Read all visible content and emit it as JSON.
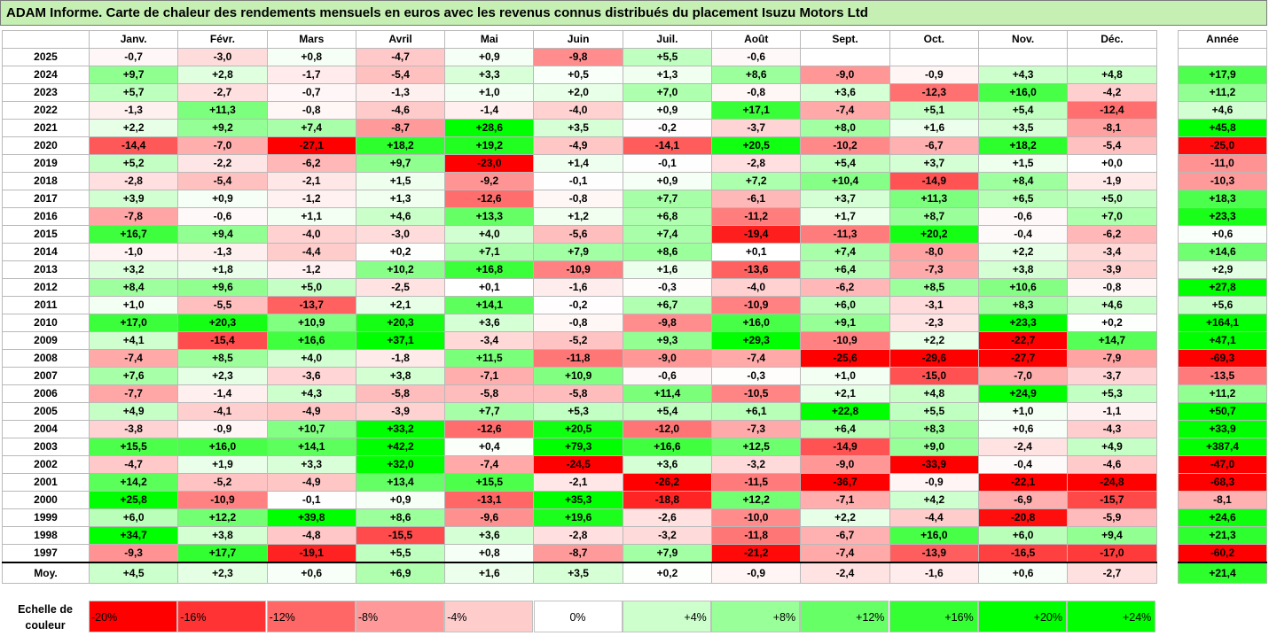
{
  "title": "ADAM Informe. Carte de chaleur des rendements mensuels en euros avec les revenus connus distribués du placement Isuzu Motors Ltd",
  "chart_data": {
    "type": "heatmap",
    "title": "ADAM Informe. Carte de chaleur des rendements mensuels en euros avec les revenus connus distribués du placement Isuzu Motors Ltd",
    "months": [
      "Janv.",
      "Févr.",
      "Mars",
      "Avril",
      "Mai",
      "Juin",
      "Juil.",
      "Août",
      "Sept.",
      "Oct.",
      "Nov.",
      "Déc."
    ],
    "annual_header": "Année",
    "rows": [
      {
        "year": "2025",
        "values": [
          "-0,7",
          "-3,0",
          "+0,8",
          "-4,7",
          "+0,9",
          "-9,8",
          "+5,5",
          "-0,6",
          "",
          "",
          "",
          ""
        ],
        "annual": ""
      },
      {
        "year": "2024",
        "values": [
          "+9,7",
          "+2,8",
          "-1,7",
          "-5,4",
          "+3,3",
          "+0,5",
          "+1,3",
          "+8,6",
          "-9,0",
          "-0,9",
          "+4,3",
          "+4,8"
        ],
        "annual": "+17,9"
      },
      {
        "year": "2023",
        "values": [
          "+5,7",
          "-2,7",
          "-0,7",
          "-1,3",
          "+1,0",
          "+2,0",
          "+7,0",
          "-0,8",
          "+3,6",
          "-12,3",
          "+16,0",
          "-4,2"
        ],
        "annual": "+11,2"
      },
      {
        "year": "2022",
        "values": [
          "-1,3",
          "+11,3",
          "-0,8",
          "-4,6",
          "-1,4",
          "-4,0",
          "+0,9",
          "+17,1",
          "-7,4",
          "+5,1",
          "+5,4",
          "-12,4"
        ],
        "annual": "+4,6"
      },
      {
        "year": "2021",
        "values": [
          "+2,2",
          "+9,2",
          "+7,4",
          "-8,7",
          "+28,6",
          "+3,5",
          "-0,2",
          "-3,7",
          "+8,0",
          "+1,6",
          "+3,5",
          "-8,1"
        ],
        "annual": "+45,8"
      },
      {
        "year": "2020",
        "values": [
          "-14,4",
          "-7,0",
          "-27,1",
          "+18,2",
          "+19,2",
          "-4,9",
          "-14,1",
          "+20,5",
          "-10,2",
          "-6,7",
          "+18,2",
          "-5,4"
        ],
        "annual": "-25,0"
      },
      {
        "year": "2019",
        "values": [
          "+5,2",
          "-2,2",
          "-6,2",
          "+9,7",
          "-23,0",
          "+1,4",
          "-0,1",
          "-2,8",
          "+5,4",
          "+3,7",
          "+1,5",
          "+0,0"
        ],
        "annual": "-11,0"
      },
      {
        "year": "2018",
        "values": [
          "-2,8",
          "-5,4",
          "-2,1",
          "+1,5",
          "-9,2",
          "-0,1",
          "+0,9",
          "+7,2",
          "+10,4",
          "-14,9",
          "+8,4",
          "-1,9"
        ],
        "annual": "-10,3"
      },
      {
        "year": "2017",
        "values": [
          "+3,9",
          "+0,9",
          "-1,2",
          "+1,3",
          "-12,6",
          "-0,8",
          "+7,7",
          "-6,1",
          "+3,7",
          "+11,3",
          "+6,5",
          "+5,0"
        ],
        "annual": "+18,3"
      },
      {
        "year": "2016",
        "values": [
          "-7,8",
          "-0,6",
          "+1,1",
          "+4,6",
          "+13,3",
          "+1,2",
          "+6,8",
          "-11,2",
          "+1,7",
          "+8,7",
          "-0,6",
          "+7,0"
        ],
        "annual": "+23,3"
      },
      {
        "year": "2015",
        "values": [
          "+16,7",
          "+9,4",
          "-4,0",
          "-3,0",
          "+4,0",
          "-5,6",
          "+7,4",
          "-19,4",
          "-11,3",
          "+20,2",
          "-0,4",
          "-6,2"
        ],
        "annual": "+0,6"
      },
      {
        "year": "2014",
        "values": [
          "-1,0",
          "-1,3",
          "-4,4",
          "+0,2",
          "+7,1",
          "+7,9",
          "+8,6",
          "+0,1",
          "+7,4",
          "-8,0",
          "+2,2",
          "-3,4"
        ],
        "annual": "+14,6"
      },
      {
        "year": "2013",
        "values": [
          "+3,2",
          "+1,8",
          "-1,2",
          "+10,2",
          "+16,8",
          "-10,9",
          "+1,6",
          "-13,6",
          "+6,4",
          "-7,3",
          "+3,8",
          "-3,9"
        ],
        "annual": "+2,9"
      },
      {
        "year": "2012",
        "values": [
          "+8,4",
          "+9,6",
          "+5,0",
          "-2,5",
          "+0,1",
          "-1,6",
          "-0,3",
          "-4,0",
          "-6,2",
          "+8,5",
          "+10,6",
          "-0,8"
        ],
        "annual": "+27,8"
      },
      {
        "year": "2011",
        "values": [
          "+1,0",
          "-5,5",
          "-13,7",
          "+2,1",
          "+14,1",
          "-0,2",
          "+6,7",
          "-10,9",
          "+6,0",
          "-3,1",
          "+8,3",
          "+4,6"
        ],
        "annual": "+5,6"
      },
      {
        "year": "2010",
        "values": [
          "+17,0",
          "+20,3",
          "+10,9",
          "+20,3",
          "+3,6",
          "-0,8",
          "-9,8",
          "+16,0",
          "+9,1",
          "-2,3",
          "+23,3",
          "+0,2"
        ],
        "annual": "+164,1"
      },
      {
        "year": "2009",
        "values": [
          "+4,1",
          "-15,4",
          "+16,6",
          "+37,1",
          "-3,4",
          "-5,2",
          "+9,3",
          "+29,3",
          "-10,9",
          "+2,2",
          "-22,7",
          "+14,7"
        ],
        "annual": "+47,1"
      },
      {
        "year": "2008",
        "values": [
          "-7,4",
          "+8,5",
          "+4,0",
          "-1,8",
          "+11,5",
          "-11,8",
          "-9,0",
          "-7,4",
          "-25,6",
          "-29,6",
          "-27,7",
          "-7,9"
        ],
        "annual": "-69,3"
      },
      {
        "year": "2007",
        "values": [
          "+7,6",
          "+2,3",
          "-3,6",
          "+3,8",
          "-7,1",
          "+10,9",
          "-0,6",
          "-0,3",
          "+1,0",
          "-15,0",
          "-7,0",
          "-3,7"
        ],
        "annual": "-13,5"
      },
      {
        "year": "2006",
        "values": [
          "-7,7",
          "-1,4",
          "+4,3",
          "-5,8",
          "-5,8",
          "-5,8",
          "+11,4",
          "-10,5",
          "+2,1",
          "+4,8",
          "+24,9",
          "+5,3"
        ],
        "annual": "+11,2"
      },
      {
        "year": "2005",
        "values": [
          "+4,9",
          "-4,1",
          "-4,9",
          "-3,9",
          "+7,7",
          "+5,3",
          "+5,4",
          "+6,1",
          "+22,8",
          "+5,5",
          "+1,0",
          "-1,1"
        ],
        "annual": "+50,7"
      },
      {
        "year": "2004",
        "values": [
          "-3,8",
          "-0,9",
          "+10,7",
          "+33,2",
          "-12,6",
          "+20,5",
          "-12,0",
          "-7,3",
          "+6,4",
          "+8,3",
          "+0,6",
          "-4,3"
        ],
        "annual": "+33,9"
      },
      {
        "year": "2003",
        "values": [
          "+15,5",
          "+16,0",
          "+14,1",
          "+42,2",
          "+0,4",
          "+79,3",
          "+16,6",
          "+12,5",
          "-14,9",
          "+9,0",
          "-2,4",
          "+4,9"
        ],
        "annual": "+387,4"
      },
      {
        "year": "2002",
        "values": [
          "-4,7",
          "+1,9",
          "+3,3",
          "+32,0",
          "-7,4",
          "-24,5",
          "+3,6",
          "-3,2",
          "-9,0",
          "-33,9",
          "-0,4",
          "-4,6"
        ],
        "annual": "-47,0"
      },
      {
        "year": "2001",
        "values": [
          "+14,2",
          "-5,2",
          "-4,9",
          "+13,4",
          "+15,5",
          "-2,1",
          "-26,2",
          "-11,5",
          "-36,7",
          "-0,9",
          "-22,1",
          "-24,8"
        ],
        "annual": "-68,3"
      },
      {
        "year": "2000",
        "values": [
          "+25,8",
          "-10,9",
          "-0,1",
          "+0,9",
          "-13,1",
          "+35,3",
          "-18,8",
          "+12,2",
          "-7,1",
          "+4,2",
          "-6,9",
          "-15,7"
        ],
        "annual": "-8,1"
      },
      {
        "year": "1999",
        "values": [
          "+6,0",
          "+12,2",
          "+39,8",
          "+8,6",
          "-9,6",
          "+19,6",
          "-2,6",
          "-10,0",
          "+2,2",
          "-4,4",
          "-20,8",
          "-5,9"
        ],
        "annual": "+24,6"
      },
      {
        "year": "1998",
        "values": [
          "+34,7",
          "+3,8",
          "-4,8",
          "-15,5",
          "+3,6",
          "-2,8",
          "-3,2",
          "-11,8",
          "-6,7",
          "+16,0",
          "+6,0",
          "+9,4"
        ],
        "annual": "+21,3"
      },
      {
        "year": "1997",
        "values": [
          "-9,3",
          "+17,7",
          "-19,1",
          "+5,5",
          "+0,8",
          "-8,7",
          "+7,9",
          "-21,2",
          "-7,4",
          "-13,9",
          "-16,5",
          "-17,0"
        ],
        "annual": "-60,2"
      }
    ],
    "average": {
      "label": "Moy.",
      "values": [
        "+4,5",
        "+2,3",
        "+0,6",
        "+6,9",
        "+1,6",
        "+3,5",
        "+0,2",
        "-0,9",
        "-2,4",
        "-1,6",
        "+0,6",
        "-2,7"
      ],
      "annual": "+21,4"
    },
    "scale": {
      "label_line1": "Echelle de",
      "label_line2": "couleur",
      "steps": [
        "-20%",
        "-16%",
        "-12%",
        "-8%",
        "-4%",
        "0%",
        "+4%",
        "+8%",
        "+12%",
        "+16%",
        "+20%",
        "+24%"
      ]
    },
    "colors": {
      "negative": "#ff0000",
      "positive": "#00ff00",
      "neutral": "#ffffff",
      "title_bg": "#c6efb4"
    }
  }
}
